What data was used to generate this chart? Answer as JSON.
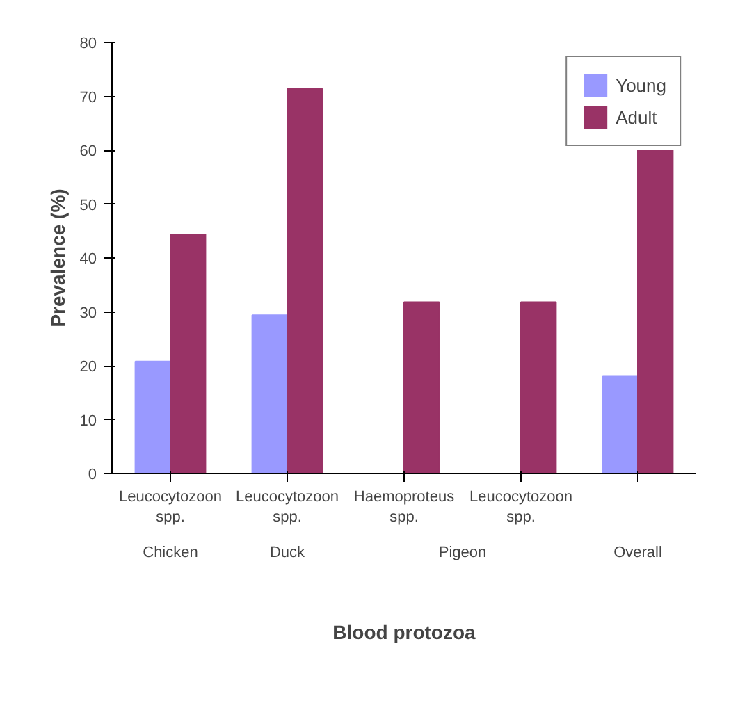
{
  "chart_data": {
    "type": "bar",
    "xlabel": "Blood protozoa",
    "ylabel": "Prevalence (%)",
    "categories": [
      "Leucocytozoon spp.",
      "Leucocytozoon spp.",
      "Haemoproteus spp.",
      "Leucocytozoon spp.",
      null
    ],
    "series": [
      {
        "name": "Young",
        "color": "#9999ff",
        "values": [
          20.8,
          29.4,
          0,
          0,
          18
        ]
      },
      {
        "name": "Adult",
        "color": "#993366",
        "values": [
          44.4,
          71.4,
          31.8,
          31.8,
          60
        ]
      }
    ],
    "annotations": [
      "Chicken",
      "Duck",
      "Pigeon",
      "Overall"
    ],
    "ylim": [
      0,
      80
    ],
    "yticks": [
      0,
      10,
      20,
      30,
      40,
      50,
      60,
      70,
      80
    ],
    "legend": "top right",
    "grid": false
  }
}
